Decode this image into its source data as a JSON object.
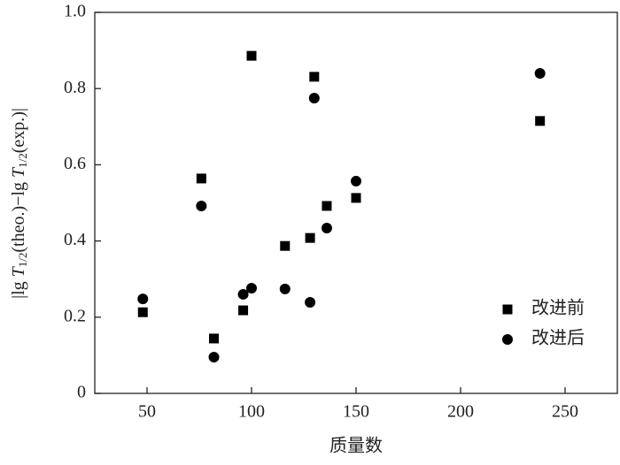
{
  "chart_data": {
    "type": "scatter",
    "xlabel": "质量数",
    "ylabel": [
      "|lg ",
      "T",
      "1/2",
      "(theo.)−lg ",
      "T",
      "1/2",
      "(exp.)|"
    ],
    "xlim": [
      25,
      275
    ],
    "xticks": [
      50,
      100,
      150,
      200,
      250
    ],
    "ylim": [
      0,
      1
    ],
    "yticks": [
      0,
      0.2,
      0.4,
      0.6,
      0.8,
      {
        "value": 1,
        "label": "1.0"
      }
    ],
    "legend": "lower right",
    "series": [
      {
        "name": "改进前",
        "marker": "square",
        "color": "#000000",
        "x": [
          48,
          76,
          82,
          96,
          100,
          116,
          128,
          130,
          136,
          150,
          238
        ],
        "values": [
          0.213,
          0.564,
          0.144,
          0.218,
          0.886,
          0.387,
          0.408,
          0.831,
          0.492,
          0.513,
          0.715
        ]
      },
      {
        "name": "改进后",
        "marker": "circle",
        "color": "#000000",
        "x": [
          48,
          76,
          82,
          96,
          100,
          116,
          128,
          130,
          136,
          150,
          238
        ],
        "values": [
          0.248,
          0.492,
          0.095,
          0.26,
          0.276,
          0.274,
          0.239,
          0.775,
          0.434,
          0.557,
          0.84
        ]
      }
    ]
  }
}
